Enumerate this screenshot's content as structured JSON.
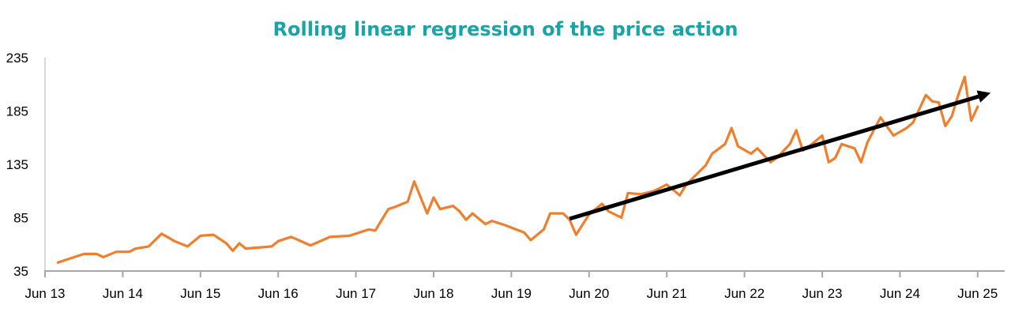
{
  "chart_data": {
    "type": "line",
    "title": "Rolling linear regression  of the price action",
    "xlabel": "",
    "ylabel": "",
    "ylim": [
      35,
      235
    ],
    "yticks": [
      "35",
      "85",
      "135",
      "185",
      "235"
    ],
    "xticks": [
      "Jun 13",
      "Jun 14",
      "Jun 15",
      "Jun 16",
      "Jun 17",
      "Jun 18",
      "Jun 19",
      "Jun 20",
      "Jun 21",
      "Jun 22",
      "Jun 23",
      "Jun 24",
      "Jun 25"
    ],
    "xlim": [
      "2013-06",
      "2025-09"
    ],
    "grid": false,
    "legend": "none",
    "series": [
      {
        "color": "#f07f2d",
        "points": [
          [
            "2013-08",
            43
          ],
          [
            "2013-09",
            45
          ],
          [
            "2013-12",
            51
          ],
          [
            "2014-02",
            51
          ],
          [
            "2014-03",
            48
          ],
          [
            "2014-05",
            53
          ],
          [
            "2014-07",
            53
          ],
          [
            "2014-08",
            56
          ],
          [
            "2014-10",
            58
          ],
          [
            "2014-12",
            70
          ],
          [
            "2015-02",
            63
          ],
          [
            "2015-04",
            58
          ],
          [
            "2015-06",
            68
          ],
          [
            "2015-08",
            69
          ],
          [
            "2015-10",
            61
          ],
          [
            "2015-11",
            54
          ],
          [
            "2015-12",
            61
          ],
          [
            "2016-01",
            56
          ],
          [
            "2016-05",
            58
          ],
          [
            "2016-06",
            63
          ],
          [
            "2016-08",
            67
          ],
          [
            "2016-11",
            59
          ],
          [
            "2017-02",
            67
          ],
          [
            "2017-05",
            68
          ],
          [
            "2017-08",
            74
          ],
          [
            "2017-09",
            73
          ],
          [
            "2017-11",
            93
          ],
          [
            "2017-12",
            95
          ],
          [
            "2018-02",
            100
          ],
          [
            "2018-03",
            119
          ],
          [
            "2018-04",
            104
          ],
          [
            "2018-05",
            89
          ],
          [
            "2018-06",
            104
          ],
          [
            "2018-07",
            93
          ],
          [
            "2018-09",
            96
          ],
          [
            "2018-10",
            91
          ],
          [
            "2018-11",
            83
          ],
          [
            "2018-12",
            89
          ],
          [
            "2019-02",
            79
          ],
          [
            "2019-03",
            82
          ],
          [
            "2019-05",
            78
          ],
          [
            "2019-08",
            71
          ],
          [
            "2019-09",
            64
          ],
          [
            "2019-11",
            74
          ],
          [
            "2019-12",
            89
          ],
          [
            "2020-02",
            89
          ],
          [
            "2020-03",
            83
          ],
          [
            "2020-04",
            69
          ],
          [
            "2020-06",
            88
          ],
          [
            "2020-08",
            98
          ],
          [
            "2020-09",
            91
          ],
          [
            "2020-11",
            85
          ],
          [
            "2020-12",
            108
          ],
          [
            "2021-02",
            107
          ],
          [
            "2021-04",
            110
          ],
          [
            "2021-06",
            116
          ],
          [
            "2021-08",
            106
          ],
          [
            "2021-09",
            116
          ],
          [
            "2021-12",
            134
          ],
          [
            "2022-01",
            145
          ],
          [
            "2022-03",
            154
          ],
          [
            "2022-04",
            169
          ],
          [
            "2022-05",
            152
          ],
          [
            "2022-07",
            145
          ],
          [
            "2022-08",
            150
          ],
          [
            "2022-10",
            137
          ],
          [
            "2022-11",
            141
          ],
          [
            "2023-01",
            154
          ],
          [
            "2023-02",
            167
          ],
          [
            "2023-03",
            148
          ],
          [
            "2023-04",
            152
          ],
          [
            "2023-06",
            162
          ],
          [
            "2023-07",
            137
          ],
          [
            "2023-08",
            141
          ],
          [
            "2023-09",
            154
          ],
          [
            "2023-11",
            150
          ],
          [
            "2023-12",
            137
          ],
          [
            "2024-01",
            156
          ],
          [
            "2024-03",
            179
          ],
          [
            "2024-05",
            162
          ],
          [
            "2024-07",
            169
          ],
          [
            "2024-08",
            174
          ],
          [
            "2024-10",
            200
          ],
          [
            "2024-11",
            194
          ],
          [
            "2024-12",
            193
          ],
          [
            "2025-01",
            171
          ],
          [
            "2025-02",
            180
          ],
          [
            "2025-03",
            200
          ],
          [
            "2025-04",
            217
          ],
          [
            "2025-05",
            176
          ],
          [
            "2025-06",
            189
          ]
        ]
      }
    ],
    "annotations": [
      {
        "type": "arrow",
        "color": "#000000",
        "from": [
          "2020-03",
          84
        ],
        "to": [
          "2025-08",
          202
        ]
      }
    ]
  }
}
